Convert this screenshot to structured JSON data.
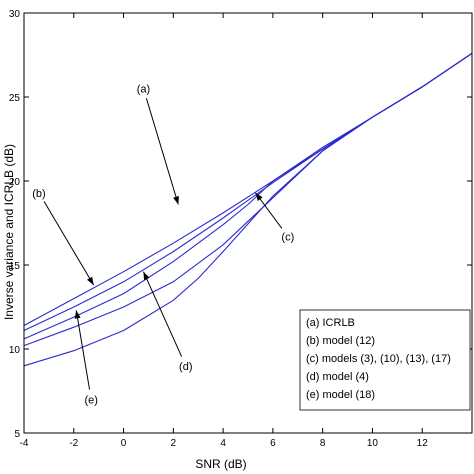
{
  "chart_data": {
    "type": "line",
    "title": "",
    "xlabel": "SNR (dB)",
    "ylabel": "Inverse variance and ICRLB (dB)",
    "xlim": [
      -4,
      14
    ],
    "ylim": [
      5,
      30
    ],
    "xticks": [
      -4,
      -2,
      0,
      2,
      4,
      6,
      8,
      10,
      12
    ],
    "yticks": [
      5,
      10,
      15,
      20,
      25,
      30
    ],
    "grid": false,
    "legend_position": "bottom-right",
    "line_color": "#2b2bd0",
    "series": [
      {
        "key": "a",
        "x": [
          -4,
          -2,
          0,
          2,
          4,
          6,
          8,
          10,
          12,
          14
        ],
        "y": [
          11.4,
          13.0,
          14.6,
          16.3,
          18.1,
          20.0,
          21.9,
          23.8,
          25.6,
          27.6
        ]
      },
      {
        "key": "b",
        "x": [
          -4,
          -2,
          0,
          2,
          4,
          6,
          8,
          10,
          12,
          14
        ],
        "y": [
          11.1,
          12.5,
          14.0,
          15.8,
          17.8,
          19.9,
          21.9,
          23.8,
          25.6,
          27.6
        ]
      },
      {
        "key": "c",
        "x": [
          -4,
          -2,
          0,
          2,
          4,
          5,
          6,
          8,
          10,
          12,
          14
        ],
        "y": [
          10.6,
          11.9,
          13.3,
          15.2,
          17.4,
          18.6,
          20.0,
          22.0,
          23.8,
          25.6,
          27.6
        ]
      },
      {
        "key": "d",
        "x": [
          -4,
          -2,
          0,
          2,
          4,
          6,
          8,
          10,
          12,
          14
        ],
        "y": [
          10.2,
          11.3,
          12.5,
          14.0,
          16.2,
          19.0,
          21.8,
          23.8,
          25.6,
          27.6
        ]
      },
      {
        "key": "e",
        "x": [
          -4,
          -2,
          0,
          2,
          3,
          4,
          6,
          8,
          10,
          12,
          14
        ],
        "y": [
          9.0,
          9.9,
          11.1,
          12.9,
          14.2,
          15.8,
          19.1,
          21.8,
          23.8,
          25.6,
          27.6
        ]
      }
    ],
    "annotations": [
      {
        "text": "(a)",
        "label_x": 0.8,
        "label_y": 25.5,
        "target_x": 2.2,
        "target_y": 18.6
      },
      {
        "text": "(b)",
        "label_x": -3.4,
        "label_y": 19.3,
        "target_x": -1.2,
        "target_y": 13.8
      },
      {
        "text": "(c)",
        "label_x": 6.6,
        "label_y": 16.7,
        "target_x": 5.3,
        "target_y": 19.3
      },
      {
        "text": "(d)",
        "label_x": 2.5,
        "label_y": 9.0,
        "target_x": 0.8,
        "target_y": 14.6
      },
      {
        "text": "(e)",
        "label_x": -1.3,
        "label_y": 7.0,
        "target_x": -1.9,
        "target_y": 12.3
      }
    ],
    "legend": [
      "(a)  ICRLB",
      "(b)  model (12)",
      "(c) models (3), (10), (13), (17)",
      "(d)  model (4)",
      "(e)  model (18)"
    ]
  }
}
